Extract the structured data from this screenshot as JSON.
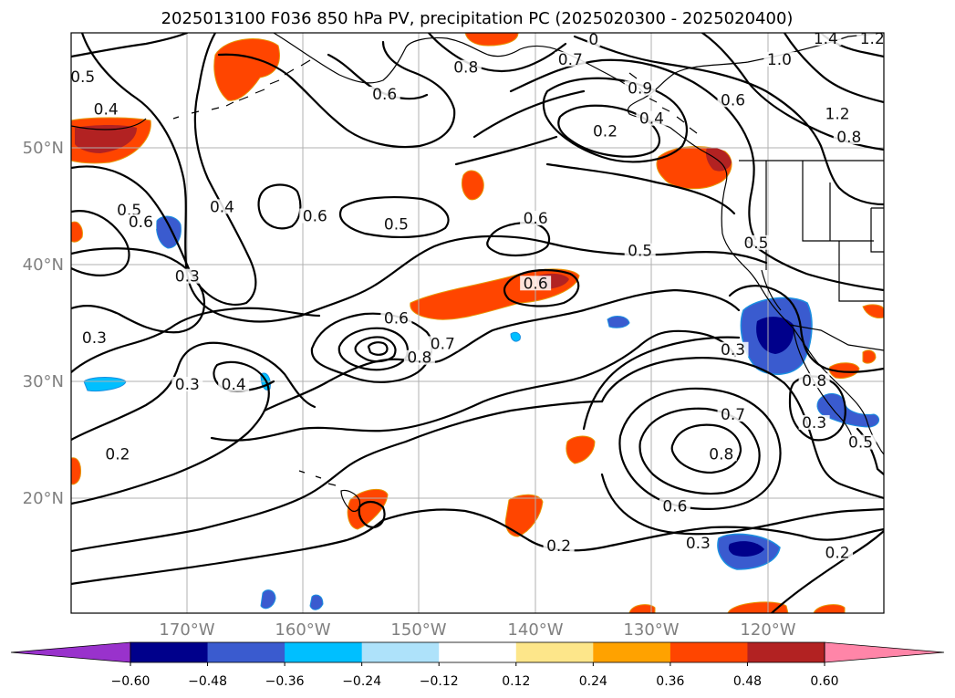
{
  "title": "2025013100 F036 850 hPa PV, precipitation PC (2025020300 - 2025020400)",
  "map": {
    "lat_labels": [
      "50°N",
      "40°N",
      "30°N",
      "20°N"
    ],
    "lon_labels": [
      "170°W",
      "160°W",
      "150°W",
      "140°W",
      "130°W",
      "120°W"
    ]
  },
  "contour_labels": [
    {
      "text": "0.5",
      "lon": -179,
      "lat": 56.0
    },
    {
      "text": "0.4",
      "lon": -177,
      "lat": 53.2
    },
    {
      "text": "0.5",
      "lon": -175,
      "lat": 44.5
    },
    {
      "text": "0.6",
      "lon": -174,
      "lat": 43.5
    },
    {
      "text": "0.4",
      "lon": -167,
      "lat": 44.8
    },
    {
      "text": "0.3",
      "lon": -170,
      "lat": 38.8
    },
    {
      "text": "0.6",
      "lon": -159,
      "lat": 44.0
    },
    {
      "text": "0.5",
      "lon": -152,
      "lat": 43.3
    },
    {
      "text": "0.3",
      "lon": -178,
      "lat": 33.5
    },
    {
      "text": "0.3",
      "lon": -170,
      "lat": 29.5
    },
    {
      "text": "0.4",
      "lon": -166,
      "lat": 29.5
    },
    {
      "text": "0.2",
      "lon": -176,
      "lat": 23.5
    },
    {
      "text": "0.6",
      "lon": -152,
      "lat": 35.2
    },
    {
      "text": "0.8",
      "lon": -150,
      "lat": 31.8
    },
    {
      "text": "0.7",
      "lon": -148,
      "lat": 33.0
    },
    {
      "text": "0.6",
      "lon": -140,
      "lat": 38.2
    },
    {
      "text": "0.6",
      "lon": -140,
      "lat": 43.8
    },
    {
      "text": "0.5",
      "lon": -131,
      "lat": 41.0
    },
    {
      "text": "0.8",
      "lon": -146,
      "lat": 56.8
    },
    {
      "text": "0.6",
      "lon": -153,
      "lat": 54.5
    },
    {
      "text": "0.7",
      "lon": -137,
      "lat": 57.5
    },
    {
      "text": "0",
      "lon": -135,
      "lat": 59.2
    },
    {
      "text": "0.9",
      "lon": -131,
      "lat": 55.0
    },
    {
      "text": "0.4",
      "lon": -130,
      "lat": 52.4
    },
    {
      "text": "0.2",
      "lon": -134,
      "lat": 51.3
    },
    {
      "text": "0.6",
      "lon": -123,
      "lat": 54.0
    },
    {
      "text": "1.4",
      "lon": -115,
      "lat": 59.3
    },
    {
      "text": "1.2",
      "lon": -111,
      "lat": 59.3
    },
    {
      "text": "1.0",
      "lon": -119,
      "lat": 57.5
    },
    {
      "text": "1.2",
      "lon": -114,
      "lat": 52.8
    },
    {
      "text": "0.8",
      "lon": -113,
      "lat": 50.8
    },
    {
      "text": "0.5",
      "lon": -121,
      "lat": 41.7
    },
    {
      "text": "0.3",
      "lon": -123,
      "lat": 32.5
    },
    {
      "text": "0.8",
      "lon": -116,
      "lat": 29.8
    },
    {
      "text": "0.7",
      "lon": -123,
      "lat": 26.9
    },
    {
      "text": "0.8",
      "lon": -124,
      "lat": 23.5
    },
    {
      "text": "0.3",
      "lon": -116,
      "lat": 26.2
    },
    {
      "text": "0.5",
      "lon": -112,
      "lat": 24.5
    },
    {
      "text": "0.6",
      "lon": -128,
      "lat": 19.0
    },
    {
      "text": "0.3",
      "lon": -126,
      "lat": 15.8
    },
    {
      "text": "0.2",
      "lon": -138,
      "lat": 15.6
    },
    {
      "text": "0.2",
      "lon": -114,
      "lat": 15.0
    }
  ],
  "colorbar": {
    "levels": [
      "−0.60",
      "−0.48",
      "−0.36",
      "−0.24",
      "−0.12",
      "0.12",
      "0.24",
      "0.36",
      "0.48",
      "0.60"
    ],
    "colors": [
      "#9932cc",
      "#00008b",
      "#3a5bcf",
      "#00bfff",
      "#aee2fa",
      "#ffffff",
      "#fde68a",
      "#ffa200",
      "#ff4500",
      "#b22222",
      "#ff85a8"
    ]
  }
}
